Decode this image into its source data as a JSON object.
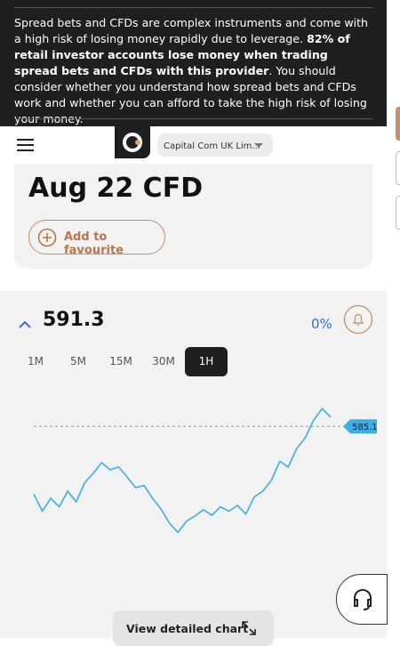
{
  "banner": [
    "Spread bets and CFDs are complex instruments and come with a high risk of losing money rapidly due to leverage. ",
    "82% of retail investor accounts lose money when trading spread bets and CFDs with this provider",
    ". You should consider whether you understand how spread bets and CFDs work and whether you can afford to take the high risk of losing your money."
  ],
  "header": {
    "account": "Capital Com UK Lim..."
  },
  "instrument": {
    "title": "Aug 22 CFD",
    "favourite": "Add to favourite"
  },
  "quote": {
    "price": "591.3",
    "change": "0%"
  },
  "timeframes": [
    "1M",
    "5M",
    "15M",
    "30M",
    "1H"
  ],
  "chart": {
    "type": "line",
    "color": "#3aaee6",
    "ylim": [
      568,
      590
    ],
    "reference": {
      "value": 585.1,
      "label": "585.1"
    },
    "values": [
      575.6,
      573.2,
      575.0,
      573.8,
      576.0,
      574.5,
      577.2,
      578.5,
      580.0,
      579.0,
      579.4,
      578.0,
      576.5,
      576.8,
      575.0,
      573.5,
      571.5,
      570.2,
      571.8,
      572.5,
      573.4,
      572.6,
      573.8,
      573.2,
      574.0,
      572.8,
      575.2,
      576.0,
      577.5,
      580.2,
      579.4,
      582.0,
      583.5,
      586.0,
      587.6,
      586.4
    ]
  },
  "detail_button": "View detailed chart"
}
